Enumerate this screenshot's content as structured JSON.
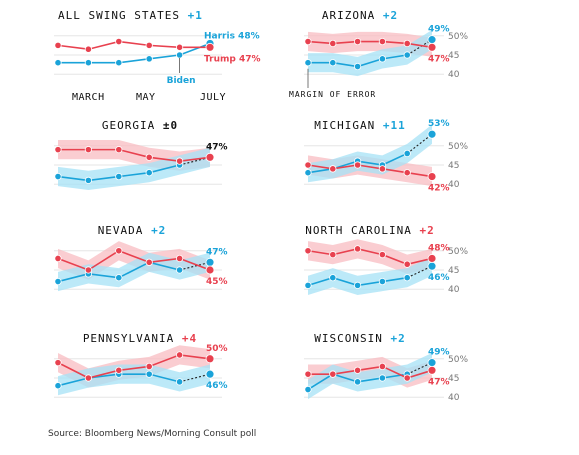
{
  "colors": {
    "harris": "#1aa3d9",
    "trump": "#e8414f",
    "harris_band": "#a6e1f5",
    "trump_band": "#f8bcc2",
    "grid": "#e6e6e6",
    "axis_text": "#777777"
  },
  "source": "Source: Bloomberg News/Morning Consult poll",
  "annotations": {
    "margin_of_error": "MARGIN OF ERROR",
    "months": [
      "MARCH",
      "MAY",
      "JULY"
    ]
  },
  "chart_data": [
    {
      "type": "line",
      "title": "ALL SWING STATES",
      "lead": "+1",
      "lead_party": "harris",
      "series": [
        {
          "name": "Harris",
          "role": "harris",
          "values": [
            43,
            43,
            43,
            44,
            45,
            48
          ],
          "dashed_last": false,
          "end_label": "Harris 48%",
          "end_value_label": ""
        },
        {
          "name": "Trump",
          "role": "trump",
          "values": [
            47.5,
            46.5,
            48.5,
            47.5,
            47,
            47
          ],
          "dashed_last": false,
          "end_label": "Trump 47%",
          "end_value_label": ""
        }
      ],
      "callout": "Biden",
      "bands": false,
      "ylim": [
        38.5,
        51.5
      ],
      "yticks": []
    },
    {
      "type": "line",
      "title": "ARIZONA",
      "lead": "+2",
      "lead_party": "harris",
      "series": [
        {
          "name": "Harris",
          "role": "harris",
          "values": [
            43,
            43,
            42,
            44,
            45,
            49
          ],
          "dashed_last": true,
          "end_value_label": "49%"
        },
        {
          "name": "Trump",
          "role": "trump",
          "values": [
            48.5,
            48,
            48.5,
            48.5,
            48,
            47
          ],
          "dashed_last": false,
          "end_value_label": "47%"
        }
      ],
      "bands": true,
      "ylim": [
        38.5,
        51.5
      ],
      "yticks": [
        "50%",
        "45",
        "40"
      ]
    },
    {
      "type": "line",
      "title": "GEORGIA",
      "lead": "±0",
      "lead_party": "zero",
      "series": [
        {
          "name": "Harris",
          "role": "harris",
          "values": [
            42,
            41,
            42,
            43,
            45,
            47
          ],
          "dashed_last": true,
          "end_value_label": "47%"
        },
        {
          "name": "Trump",
          "role": "trump",
          "values": [
            49,
            49,
            49,
            47,
            46,
            47
          ],
          "dashed_last": false,
          "end_value_label": ""
        }
      ],
      "bands": true,
      "ylim": [
        38.5,
        51.5
      ],
      "yticks": []
    },
    {
      "type": "line",
      "title": "MICHIGAN",
      "lead": "+11",
      "lead_party": "harris",
      "series": [
        {
          "name": "Harris",
          "role": "harris",
          "values": [
            43,
            44,
            46,
            45,
            48,
            53
          ],
          "dashed_last": true,
          "end_value_label": "53%"
        },
        {
          "name": "Trump",
          "role": "trump",
          "values": [
            45,
            44,
            45,
            44,
            43,
            42
          ],
          "dashed_last": false,
          "end_value_label": "42%"
        }
      ],
      "bands": true,
      "ylim": [
        38.5,
        51.5
      ],
      "yticks": [
        "50%",
        "45",
        "40"
      ]
    },
    {
      "type": "line",
      "title": "NEVADA",
      "lead": "+2",
      "lead_party": "harris",
      "series": [
        {
          "name": "Harris",
          "role": "harris",
          "values": [
            42,
            44,
            43,
            47,
            45,
            47
          ],
          "dashed_last": true,
          "end_value_label": "47%"
        },
        {
          "name": "Trump",
          "role": "trump",
          "values": [
            48,
            45,
            50,
            47,
            48,
            45
          ],
          "dashed_last": false,
          "end_value_label": "45%"
        }
      ],
      "bands": true,
      "ylim": [
        38.5,
        51.5
      ],
      "yticks": []
    },
    {
      "type": "line",
      "title": "NORTH CAROLINA",
      "lead": "+2",
      "lead_party": "trump",
      "series": [
        {
          "name": "Harris",
          "role": "harris",
          "values": [
            41,
            43,
            41,
            42,
            43,
            46
          ],
          "dashed_last": true,
          "end_value_label": "46%"
        },
        {
          "name": "Trump",
          "role": "trump",
          "values": [
            50,
            49,
            50.5,
            49,
            46.5,
            48
          ],
          "dashed_last": false,
          "end_value_label": "48%"
        }
      ],
      "bands": true,
      "ylim": [
        38.5,
        51.5
      ],
      "yticks": [
        "50%",
        "45",
        "40"
      ]
    },
    {
      "type": "line",
      "title": "PENNSYLVANIA",
      "lead": "+4",
      "lead_party": "trump",
      "series": [
        {
          "name": "Harris",
          "role": "harris",
          "values": [
            43,
            45,
            46,
            46,
            44,
            46
          ],
          "dashed_last": true,
          "end_value_label": "46%"
        },
        {
          "name": "Trump",
          "role": "trump",
          "values": [
            49,
            45,
            47,
            48,
            51,
            50
          ],
          "dashed_last": false,
          "end_value_label": "50%"
        }
      ],
      "bands": true,
      "ylim": [
        38.5,
        51.5
      ],
      "yticks": []
    },
    {
      "type": "line",
      "title": "WISCONSIN",
      "lead": "+2",
      "lead_party": "harris",
      "series": [
        {
          "name": "Harris",
          "role": "harris",
          "values": [
            42,
            46,
            44,
            45,
            46,
            49
          ],
          "dashed_last": true,
          "end_value_label": "49%"
        },
        {
          "name": "Trump",
          "role": "trump",
          "values": [
            46,
            46,
            47,
            48,
            45,
            47
          ],
          "dashed_last": false,
          "end_value_label": "47%"
        }
      ],
      "bands": true,
      "ylim": [
        38.5,
        51.5
      ],
      "yticks": [
        "50%",
        "45",
        "40"
      ]
    }
  ]
}
